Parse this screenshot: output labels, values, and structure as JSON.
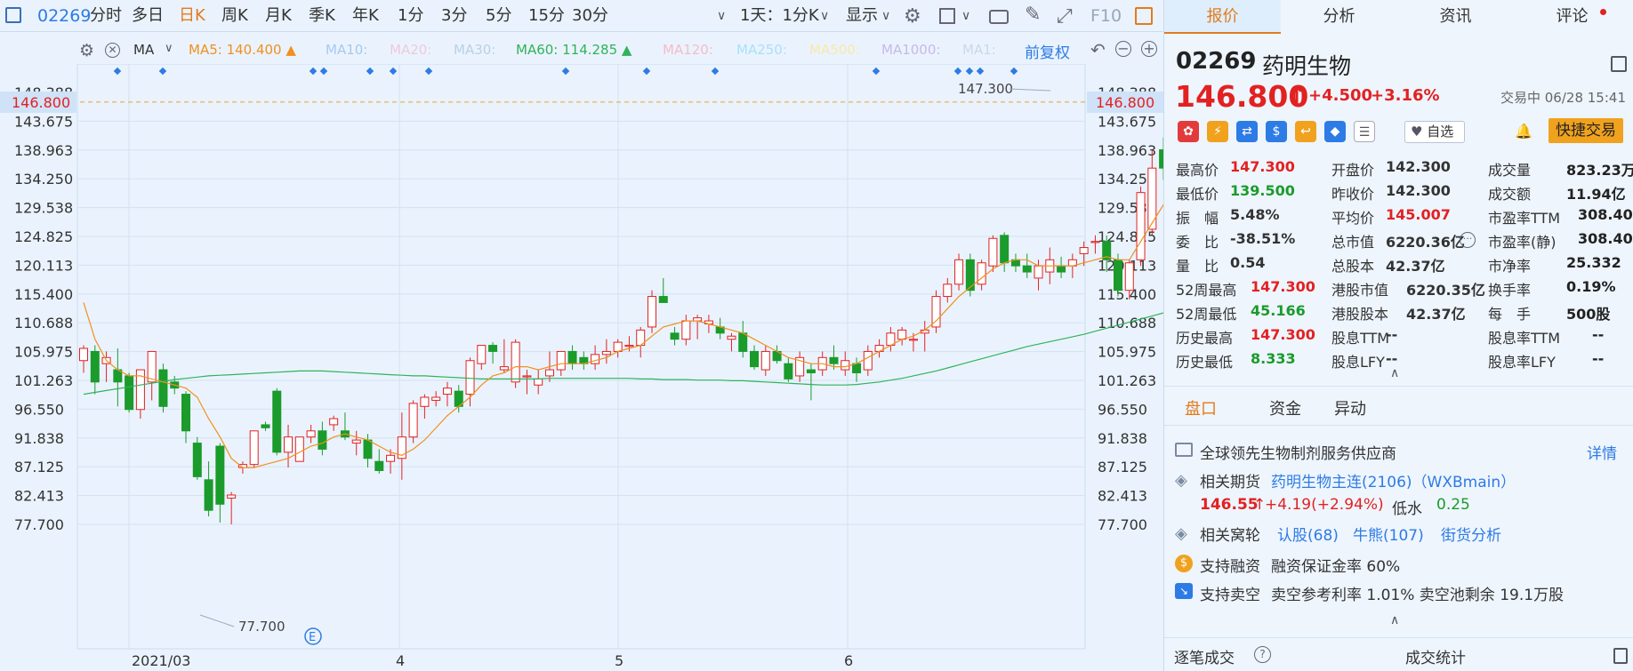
{
  "topbar": {
    "code": "02269",
    "periods": [
      "分时",
      "多日",
      "日K",
      "周K",
      "月K",
      "季K",
      "年K",
      "1分",
      "3分",
      "5分",
      "15分",
      "30分"
    ],
    "active_period": "日K",
    "interval": "1天：1分K",
    "display": "显示",
    "f10": "F10"
  },
  "indicators": {
    "ma_label": "MA",
    "ma5": "MA5: 140.400 ▲",
    "ma10": "MA10:",
    "ma20": "MA20:",
    "ma30": "MA30:",
    "ma60": "MA60: 114.285 ▲",
    "ma120": "MA120:",
    "ma250": "MA250:",
    "ma500": "MA500:",
    "ma1000": "MA1000:",
    "ma1": "MA1:",
    "adjust": "前复权"
  },
  "colors": {
    "up": "#e22121",
    "down": "#1a9b2b",
    "ma5": "#f0901e",
    "ma60": "#2fb35a",
    "accent": "#e37a1c",
    "link": "#2d7be5"
  },
  "chart_data": {
    "type": "candlestick",
    "y_ticks": [
      "148.388",
      "143.675",
      "138.963",
      "134.250",
      "129.538",
      "124.825",
      "120.113",
      "115.400",
      "110.688",
      "105.975",
      "101.263",
      "96.550",
      "91.838",
      "87.125",
      "82.413",
      "77.700"
    ],
    "y_range": [
      77.7,
      148.388
    ],
    "x_ticks": [
      "2021/03",
      "4",
      "5",
      "6"
    ],
    "current_price_tag": "146.800",
    "high_label": "147.300",
    "low_label": "77.700",
    "event_marker": "E",
    "candles": [
      [
        104.5,
        107,
        102.5,
        106.5
      ],
      [
        106,
        107,
        99,
        101
      ],
      [
        104,
        106,
        101,
        105
      ],
      [
        103,
        106.5,
        97,
        101
      ],
      [
        102,
        102.5,
        96,
        96.5
      ],
      [
        96.5,
        103,
        95,
        103
      ],
      [
        101,
        106,
        98,
        106
      ],
      [
        103,
        104,
        96,
        97
      ],
      [
        101,
        102,
        99,
        100
      ],
      [
        99,
        99.5,
        91,
        93
      ],
      [
        91,
        92,
        85,
        85.5
      ],
      [
        85,
        88,
        79,
        80
      ],
      [
        90.5,
        91,
        78,
        81
      ],
      [
        82,
        83,
        77.7,
        82.5
      ],
      [
        87,
        88,
        86,
        87.5
      ],
      [
        87.5,
        93,
        87,
        93
      ],
      [
        94,
        94.5,
        93,
        93.5
      ],
      [
        99.5,
        100,
        89,
        89.5
      ],
      [
        89.5,
        94,
        87,
        92
      ],
      [
        88,
        92,
        88,
        92
      ],
      [
        92,
        94,
        91,
        93
      ],
      [
        93,
        94.5,
        89,
        90
      ],
      [
        94,
        95.5,
        93,
        95
      ],
      [
        93,
        96,
        91.5,
        92
      ],
      [
        91,
        93,
        89,
        91.5
      ],
      [
        91.5,
        92.5,
        87,
        88.5
      ],
      [
        88,
        90,
        86,
        86.5
      ],
      [
        88,
        90,
        86,
        89
      ],
      [
        88.5,
        96,
        85,
        92
      ],
      [
        92,
        98,
        91,
        97.5
      ],
      [
        97,
        99,
        95,
        98.5
      ],
      [
        98,
        99.5,
        97,
        98.5
      ],
      [
        99,
        101,
        97,
        100
      ],
      [
        99.5,
        100.5,
        96,
        97
      ],
      [
        99,
        105,
        97,
        104.5
      ],
      [
        104,
        107,
        103,
        107
      ],
      [
        107,
        107.5,
        104,
        106
      ],
      [
        103,
        108,
        102.5,
        103.5
      ],
      [
        101,
        108,
        100,
        107.5
      ],
      [
        102,
        103,
        99,
        102
      ],
      [
        100.5,
        103,
        99,
        101.5
      ],
      [
        102,
        106,
        101,
        103
      ],
      [
        103,
        106,
        102,
        106
      ],
      [
        106,
        107,
        103,
        104
      ],
      [
        105,
        106,
        103,
        104
      ],
      [
        104,
        107,
        103,
        105.5
      ],
      [
        105.5,
        108,
        104,
        106
      ],
      [
        106,
        108,
        105,
        107.5
      ],
      [
        107,
        108.5,
        106,
        107
      ],
      [
        107,
        110,
        105,
        109.5
      ],
      [
        110,
        116,
        109,
        115
      ],
      [
        115,
        118,
        114,
        114
      ],
      [
        109,
        110,
        107,
        108
      ],
      [
        108,
        112,
        107,
        111
      ],
      [
        111,
        112,
        108,
        111.5
      ],
      [
        110.5,
        112,
        109,
        111
      ],
      [
        110,
        111.5,
        108,
        109
      ],
      [
        108,
        109,
        106,
        108.5
      ],
      [
        109,
        111,
        105,
        106
      ],
      [
        106,
        107,
        103,
        103.5
      ],
      [
        103,
        107,
        102,
        106
      ],
      [
        106,
        107,
        104,
        104.5
      ],
      [
        104,
        105,
        101,
        101.5
      ],
      [
        102,
        106,
        101,
        105
      ],
      [
        103,
        104,
        98,
        102.5
      ],
      [
        103,
        106,
        102,
        105
      ],
      [
        105,
        107,
        103,
        104
      ],
      [
        103,
        106,
        102,
        104.5
      ],
      [
        104,
        105,
        101,
        102.5
      ],
      [
        103,
        107,
        102,
        106
      ],
      [
        106,
        108,
        105,
        107
      ],
      [
        107,
        110,
        106,
        109
      ],
      [
        108,
        110,
        107,
        109.5
      ],
      [
        108,
        109,
        106,
        108
      ],
      [
        109,
        111,
        106,
        109.5
      ],
      [
        110,
        116,
        109,
        115
      ],
      [
        115,
        118,
        114,
        117
      ],
      [
        117,
        122,
        116,
        121
      ],
      [
        121,
        122,
        115,
        116
      ],
      [
        117,
        121,
        116,
        120.5
      ],
      [
        120,
        125,
        119,
        124.5
      ],
      [
        125,
        125.5,
        119,
        120.5
      ],
      [
        121,
        122,
        119,
        120
      ],
      [
        120,
        122,
        118,
        119
      ],
      [
        118,
        121,
        116,
        120
      ],
      [
        119,
        123,
        117,
        121
      ],
      [
        120,
        121.5,
        118,
        119
      ],
      [
        120,
        122,
        118,
        121
      ],
      [
        122,
        124,
        120,
        123
      ],
      [
        124,
        125,
        122,
        124
      ],
      [
        124,
        125,
        119,
        121
      ],
      [
        121,
        122,
        115,
        116
      ],
      [
        116,
        121,
        114.5,
        120.5
      ],
      [
        121,
        133,
        120,
        132
      ],
      [
        126,
        139,
        125,
        136
      ],
      [
        139,
        141,
        134,
        136
      ],
      [
        136,
        139,
        134,
        135.5
      ],
      [
        135,
        143,
        134,
        141.5
      ],
      [
        142,
        144,
        136,
        137.5
      ],
      [
        139,
        143,
        138,
        142
      ],
      [
        142.3,
        147.3,
        139.5,
        146.8
      ]
    ],
    "series": [
      {
        "name": "MA5",
        "values": [
          114,
          108,
          104.5,
          103,
          102,
          102,
          101.5,
          101,
          100.5,
          100,
          98.5,
          95,
          92,
          88.5,
          87,
          87,
          87.5,
          88,
          88.5,
          89.5,
          90.5,
          91,
          92,
          92.5,
          92,
          91.5,
          90.5,
          89.5,
          89,
          90,
          91.5,
          93.5,
          95.5,
          97,
          98.5,
          100.5,
          102,
          102.5,
          103.5,
          103.5,
          103,
          103.5,
          104,
          104,
          104,
          104.5,
          105,
          106,
          106.5,
          107,
          108.5,
          110,
          110.5,
          111,
          111,
          110.5,
          110,
          109.5,
          109,
          108,
          107,
          106,
          105,
          104.5,
          104,
          104,
          103.5,
          103.5,
          104,
          105,
          106,
          107,
          108,
          108.5,
          109.5,
          111,
          113,
          115,
          116.5,
          118,
          119.5,
          120.5,
          121,
          121,
          120,
          120,
          120,
          120,
          120.5,
          121,
          121.5,
          121,
          121,
          124,
          127,
          130,
          133,
          137,
          139,
          140.4
        ]
      },
      {
        "name": "MA60",
        "values": [
          99,
          99.3,
          99.6,
          99.9,
          100.2,
          100.5,
          100.8,
          101.1,
          101.4,
          101.6,
          101.8,
          102,
          102.1,
          102.2,
          102.3,
          102.4,
          102.5,
          102.6,
          102.7,
          102.8,
          102.8,
          102.8,
          102.7,
          102.6,
          102.5,
          102.4,
          102.3,
          102.2,
          102.1,
          102,
          102,
          101.9,
          101.8,
          101.7,
          101.6,
          101.5,
          101.5,
          101.5,
          101.5,
          101.5,
          101.5,
          101.6,
          101.6,
          101.6,
          101.6,
          101.6,
          101.6,
          101.6,
          101.6,
          101.5,
          101.5,
          101.4,
          101.4,
          101.4,
          101.3,
          101.3,
          101.3,
          101.2,
          101.2,
          101.1,
          101,
          100.9,
          100.8,
          100.7,
          100.6,
          100.5,
          100.5,
          100.5,
          100.6,
          100.8,
          101,
          101.3,
          101.6,
          102,
          102.4,
          102.8,
          103.3,
          103.8,
          104.3,
          104.8,
          105.3,
          105.8,
          106.3,
          106.8,
          107.2,
          107.6,
          108,
          108.4,
          108.8,
          109.3,
          109.8,
          110.3,
          110.8,
          111.3,
          111.8,
          112.3,
          112.8,
          113.3,
          113.8,
          114.285
        ]
      }
    ]
  },
  "panel": {
    "tabs": [
      "报价",
      "分析",
      "资讯",
      "评论"
    ],
    "active_tab": "报价",
    "code": "02269",
    "name": "药明生物",
    "price": "146.800",
    "arrow": "↑",
    "change": "+4.500",
    "change_pct": "+3.16%",
    "status_time": "交易中 06/28 15:41",
    "watch": "自选",
    "quick_trade": "快捷交易",
    "quotes": [
      [
        {
          "k": "最高价",
          "v": "147.300",
          "c": "red"
        },
        {
          "k": "开盘价",
          "v": "142.300",
          "c": "black"
        },
        {
          "k": "成交量",
          "v": "823.23万",
          "c": "black"
        }
      ],
      [
        {
          "k": "最低价",
          "v": "139.500",
          "c": "green"
        },
        {
          "k": "昨收价",
          "v": "142.300",
          "c": "black"
        },
        {
          "k": "成交额",
          "v": "11.94亿",
          "c": "black"
        }
      ],
      [
        {
          "k": "振　幅",
          "v": "5.48%",
          "c": "black"
        },
        {
          "k": "平均价",
          "v": "145.007",
          "c": "red"
        },
        {
          "k": "市盈率TTM",
          "v": "308.40",
          "c": "black"
        }
      ],
      [
        {
          "k": "委　比",
          "v": "-38.51%",
          "c": "black"
        },
        {
          "k": "总市值",
          "v": "6220.36亿",
          "c": "black"
        },
        {
          "k": "市盈率(静)",
          "v": "308.40",
          "c": "black"
        }
      ],
      [
        {
          "k": "量　比",
          "v": "0.54",
          "c": "black"
        },
        {
          "k": "总股本",
          "v": "42.37亿",
          "c": "black"
        },
        {
          "k": "市净率",
          "v": "25.332",
          "c": "black"
        }
      ],
      [
        {
          "k": "52周最高",
          "v": "147.300",
          "c": "red"
        },
        {
          "k": "港股市值",
          "v": "6220.35亿",
          "c": "black"
        },
        {
          "k": "换手率",
          "v": "0.19%",
          "c": "black"
        }
      ],
      [
        {
          "k": "52周最低",
          "v": "45.166",
          "c": "green"
        },
        {
          "k": "港股股本",
          "v": "42.37亿",
          "c": "black"
        },
        {
          "k": "每　手",
          "v": "500股",
          "c": "black"
        }
      ],
      [
        {
          "k": "历史最高",
          "v": "147.300",
          "c": "red"
        },
        {
          "k": "股息TTM",
          "v": "--",
          "c": "black"
        },
        {
          "k": "股息率TTM",
          "v": "--",
          "c": "black"
        }
      ],
      [
        {
          "k": "历史最低",
          "v": "8.333",
          "c": "green"
        },
        {
          "k": "股息LFY",
          "v": "--",
          "c": "black"
        },
        {
          "k": "股息率LFY",
          "v": "--",
          "c": "black"
        }
      ]
    ],
    "subtabs": [
      "盘口",
      "资金",
      "异动"
    ],
    "active_subtab": "盘口",
    "info": {
      "desc": "全球领先生物制剂服务供应商",
      "detail": "详情",
      "futures_label": "相关期货",
      "futures_link": "药明生物主连(2106)（WXBmain）",
      "futures_price": "146.55",
      "futures_arrow": "↑",
      "futures_change": "+4.19(+2.94%)",
      "discount_label": "低水",
      "discount_value": "0.25",
      "warrants_label": "相关窝轮",
      "warrant_call": "认股(68)",
      "warrant_cbbc": "牛熊(107)",
      "warrant_street": "街货分析",
      "margin_label": "支持融资",
      "margin_text": "融资保证金率 60%",
      "short_label": "支持卖空",
      "short_text": "卖空参考利率 1.01%  卖空池剩余 19.1万股"
    },
    "bottom_tabs": [
      "逐笔成交",
      "成交统计"
    ]
  }
}
